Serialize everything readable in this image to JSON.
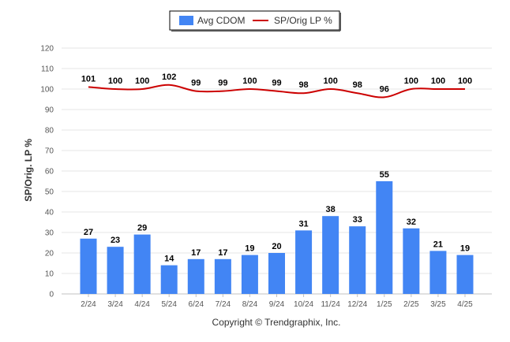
{
  "chart_data": {
    "type": "bar",
    "categories": [
      "2/24",
      "3/24",
      "4/24",
      "5/24",
      "6/24",
      "7/24",
      "8/24",
      "9/24",
      "10/24",
      "11/24",
      "12/24",
      "1/25",
      "2/25",
      "3/25",
      "4/25"
    ],
    "series": [
      {
        "name": "Avg CDOM",
        "type": "bar",
        "color": "#4285f4",
        "values": [
          27,
          23,
          29,
          14,
          17,
          17,
          19,
          20,
          31,
          38,
          33,
          55,
          32,
          21,
          19
        ]
      },
      {
        "name": "SP/Orig LP %",
        "type": "line",
        "color": "#cc0000",
        "values": [
          101,
          100,
          100,
          102,
          99,
          99,
          100,
          99,
          98,
          100,
          98,
          96,
          100,
          100,
          100
        ]
      }
    ],
    "ylabel": "SP/Orig. LP %",
    "ylim": [
      0,
      120
    ],
    "yticks": [
      0,
      10,
      20,
      30,
      40,
      50,
      60,
      70,
      80,
      90,
      100,
      110,
      120
    ],
    "grid": true,
    "legend_position": "top-center"
  },
  "footer": {
    "copyright": "Copyright © Trendgraphix, Inc."
  }
}
